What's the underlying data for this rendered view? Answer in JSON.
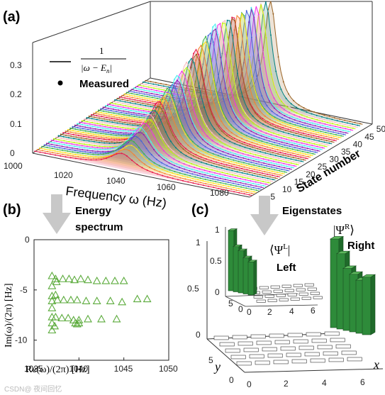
{
  "panels": {
    "a": {
      "tag": "(a)"
    },
    "b": {
      "tag": "(b)"
    },
    "c": {
      "tag": "(c)"
    }
  },
  "chart_data": [
    {
      "type": "line",
      "panel": "a",
      "description_axes": "3D waterfall",
      "xlabel": "Frequency ω (Hz)",
      "ylabel": "State number",
      "x_ticks": [
        "1000",
        "1020",
        "1040",
        "1060",
        "1080"
      ],
      "y_ticks": [
        "0",
        "5",
        "10",
        "15",
        "20",
        "25",
        "30",
        "35",
        "40",
        "45",
        "50"
      ],
      "z_ticks": [
        "0",
        "0.1",
        "0.2",
        "0.3"
      ],
      "xlim": [
        1000,
        1085
      ],
      "ylim": [
        0,
        50
      ],
      "zlim": [
        0,
        0.35
      ],
      "legend": [
        {
          "label_prefix": "1",
          "label_den": "|ω − E",
          "label_sub": "n",
          "label_close": "|",
          "marker": "line"
        },
        {
          "label": "Measured",
          "marker": "dot"
        }
      ],
      "legend_position": "top-left",
      "series_peak_frequencies": [
        1036,
        1037,
        1038,
        1039,
        1040,
        1041,
        1042,
        1043,
        1044,
        1045,
        1046,
        1047
      ],
      "series_peak_heights": [
        0.12,
        0.15,
        0.17,
        0.19,
        0.21,
        0.23,
        0.25,
        0.27,
        0.28,
        0.29,
        0.3,
        0.3
      ],
      "colors": [
        "#e6194b",
        "#f58231",
        "#ffe119",
        "#3cb44b",
        "#4363d8",
        "#911eb4",
        "#46f0f0",
        "#f032e6",
        "#bcf60c",
        "#fabebe",
        "#008080",
        "#9a6324"
      ]
    },
    {
      "type": "scatter",
      "panel": "b",
      "title": "Energy spectrum",
      "xlabel": "Re(ω)/(2π) [Hz]",
      "ylabel": "Im(ω)/(2π) [Hz]",
      "xlim": [
        1035,
        1050
      ],
      "ylim": [
        -12,
        0
      ],
      "x_ticks": [
        "1035",
        "1040",
        "1045",
        "1050"
      ],
      "y_ticks": [
        "0",
        "-5",
        "-10"
      ],
      "marker": "triangle",
      "color": "#5aaa3a",
      "points": [
        [
          1037.0,
          -3.6
        ],
        [
          1037.4,
          -3.9
        ],
        [
          1038.2,
          -3.9
        ],
        [
          1038.9,
          -3.9
        ],
        [
          1039.5,
          -4.0
        ],
        [
          1040.2,
          -3.9
        ],
        [
          1041.0,
          -4.0
        ],
        [
          1042.0,
          -4.1
        ],
        [
          1043.0,
          -4.1
        ],
        [
          1044.0,
          -4.1
        ],
        [
          1045.0,
          -4.1
        ],
        [
          1037.0,
          -4.6
        ],
        [
          1037.5,
          -4.2
        ],
        [
          1037.0,
          -5.6
        ],
        [
          1037.4,
          -5.5
        ],
        [
          1037.0,
          -6.1
        ],
        [
          1037.6,
          -6.0
        ],
        [
          1038.3,
          -6.0
        ],
        [
          1039.1,
          -6.0
        ],
        [
          1039.8,
          -6.0
        ],
        [
          1040.8,
          -6.1
        ],
        [
          1042.0,
          -6.1
        ],
        [
          1043.5,
          -6.1
        ],
        [
          1044.8,
          -6.2
        ],
        [
          1046.5,
          -5.9
        ],
        [
          1047.6,
          -5.9
        ],
        [
          1037.0,
          -6.8
        ],
        [
          1037.0,
          -7.7
        ],
        [
          1037.4,
          -7.7
        ],
        [
          1038.1,
          -7.8
        ],
        [
          1038.8,
          -7.8
        ],
        [
          1039.4,
          -8.0
        ],
        [
          1040.0,
          -8.0
        ],
        [
          1041.0,
          -7.9
        ],
        [
          1042.5,
          -7.9
        ],
        [
          1044.2,
          -7.9
        ],
        [
          1037.0,
          -8.3
        ],
        [
          1037.3,
          -8.6
        ],
        [
          1039.6,
          -8.3
        ],
        [
          1039.8,
          -8.4
        ],
        [
          1040.0,
          -8.3
        ],
        [
          1037.0,
          -9.0
        ]
      ]
    },
    {
      "type": "bar",
      "panel": "c",
      "title": "Eigenstates",
      "xlabel": "x",
      "ylabel": "y",
      "x_ticks": [
        "0",
        "2",
        "4",
        "6"
      ],
      "y_ticks": [
        "0",
        "5"
      ],
      "z_ticks": [
        "0",
        "0.5",
        "1"
      ],
      "series": [
        {
          "name": "Right",
          "symbol": "|Ψ",
          "symbol_sup": "R",
          "symbol_close": "⟩",
          "bar_heights": [
            1.0,
            0.85,
            0.7,
            0.65,
            0.6,
            0.65
          ]
        },
        {
          "name": "Left",
          "symbol": "⟨Ψ",
          "symbol_sup": "L",
          "symbol_close": "|",
          "bar_heights": [
            1.0,
            0.75,
            0.7,
            0.6,
            0.55
          ]
        }
      ],
      "inset_x_ticks": [
        "0",
        "2",
        "4",
        "6"
      ],
      "inset_y_ticks": [
        "0",
        "5"
      ],
      "inset_z_ticks": [
        "0",
        "0.5",
        "1"
      ]
    }
  ],
  "arrows": {
    "color": "#c8c8c8"
  },
  "watermark": "CSDN@ 夜间回忆"
}
